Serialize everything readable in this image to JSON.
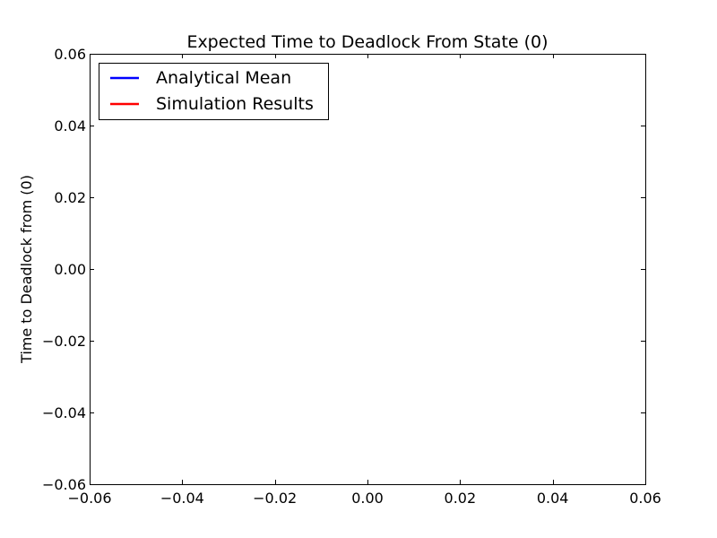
{
  "chart_data": {
    "type": "line",
    "title": "Expected Time to Deadlock From State (0)",
    "xlabel": "",
    "ylabel": "Time to Deadlock from (0)",
    "xlim": [
      -0.06,
      0.06
    ],
    "ylim": [
      -0.06,
      0.06
    ],
    "x_ticks": [
      "−0.06",
      "−0.04",
      "−0.02",
      "0.00",
      "0.02",
      "0.04",
      "0.06"
    ],
    "y_ticks": [
      "−0.06",
      "−0.04",
      "−0.02",
      "0.00",
      "0.02",
      "0.04",
      "0.06"
    ],
    "grid": false,
    "legend_position": "upper left",
    "series": [
      {
        "name": "Analytical Mean",
        "color": "#0000ff",
        "x": [],
        "y": []
      },
      {
        "name": "Simulation Results",
        "color": "#ff0000",
        "x": [],
        "y": []
      }
    ]
  }
}
